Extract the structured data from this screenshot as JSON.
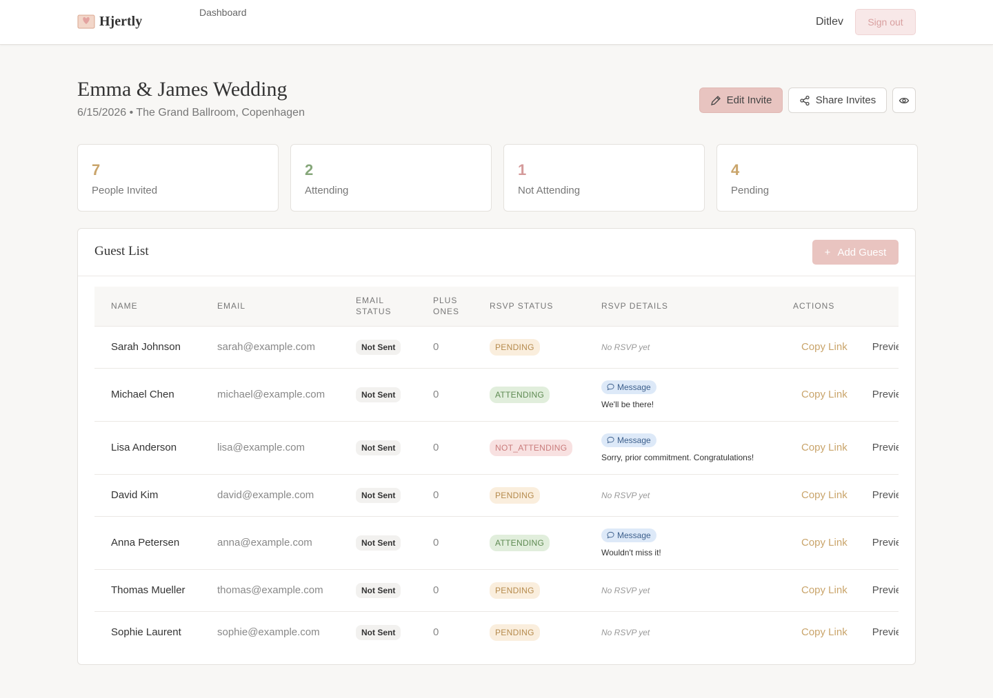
{
  "nav": {
    "brand": "Hjertly",
    "links": [
      "Dashboard"
    ],
    "user": "Ditlev",
    "sign_out": "Sign out"
  },
  "event": {
    "title": "Emma & James Wedding",
    "subtitle": "6/15/2026 • The Grand Ballroom, Copenhagen",
    "edit_button": "Edit Invite",
    "share_button": "Share Invites"
  },
  "stats": [
    {
      "value": 7,
      "label": "People Invited",
      "color": "#c9a46a"
    },
    {
      "value": 2,
      "label": "Attending",
      "color": "#86a77a"
    },
    {
      "value": 1,
      "label": "Not Attending",
      "color": "#d49a9a"
    },
    {
      "value": 4,
      "label": "Pending",
      "color": "#c9a46a"
    }
  ],
  "guest_list": {
    "title": "Guest List",
    "add_button": "Add Guest",
    "columns": [
      "NAME",
      "EMAIL",
      "EMAIL STATUS",
      "PLUS ONES",
      "RSVP STATUS",
      "RSVP DETAILS",
      "ACTIONS"
    ],
    "rows": [
      {
        "name": "Sarah Johnson",
        "email": "sarah@example.com",
        "email_status": "Not Sent",
        "plus_ones": 0,
        "rsvp_status": "PENDING",
        "rsvp_details": "No RSVP yet",
        "actions": [
          "Copy Link",
          "Preview"
        ]
      },
      {
        "name": "Michael Chen",
        "email": "michael@example.com",
        "email_status": "Not Sent",
        "plus_ones": 0,
        "rsvp_status": "ATTENDING",
        "rsvp_details": {
          "label": "Message",
          "text": "We'll be there!"
        },
        "actions": [
          "Copy Link",
          "Preview"
        ]
      },
      {
        "name": "Lisa Anderson",
        "email": "lisa@example.com",
        "email_status": "Not Sent",
        "plus_ones": 0,
        "rsvp_status": "NOT_ATTENDING",
        "rsvp_details": {
          "label": "Message",
          "text": "Sorry, prior commitment. Congratulations!"
        },
        "actions": [
          "Copy Link",
          "Preview"
        ]
      },
      {
        "name": "David Kim",
        "email": "david@example.com",
        "email_status": "Not Sent",
        "plus_ones": 0,
        "rsvp_status": "PENDING",
        "rsvp_details": "No RSVP yet",
        "actions": [
          "Copy Link",
          "Preview"
        ]
      },
      {
        "name": "Anna Petersen",
        "email": "anna@example.com",
        "email_status": "Not Sent",
        "plus_ones": 0,
        "rsvp_status": "ATTENDING",
        "rsvp_details": {
          "label": "Message",
          "text": "Wouldn't miss it!"
        },
        "actions": [
          "Copy Link",
          "Preview"
        ]
      },
      {
        "name": "Thomas Mueller",
        "email": "thomas@example.com",
        "email_status": "Not Sent",
        "plus_ones": 0,
        "rsvp_status": "PENDING",
        "rsvp_details": "No RSVP yet",
        "actions": [
          "Copy Link",
          "Preview"
        ]
      },
      {
        "name": "Sophie Laurent",
        "email": "sophie@example.com",
        "email_status": "Not Sent",
        "plus_ones": 0,
        "rsvp_status": "PENDING",
        "rsvp_details": "No RSVP yet",
        "actions": [
          "Copy Link",
          "Preview"
        ]
      }
    ]
  }
}
